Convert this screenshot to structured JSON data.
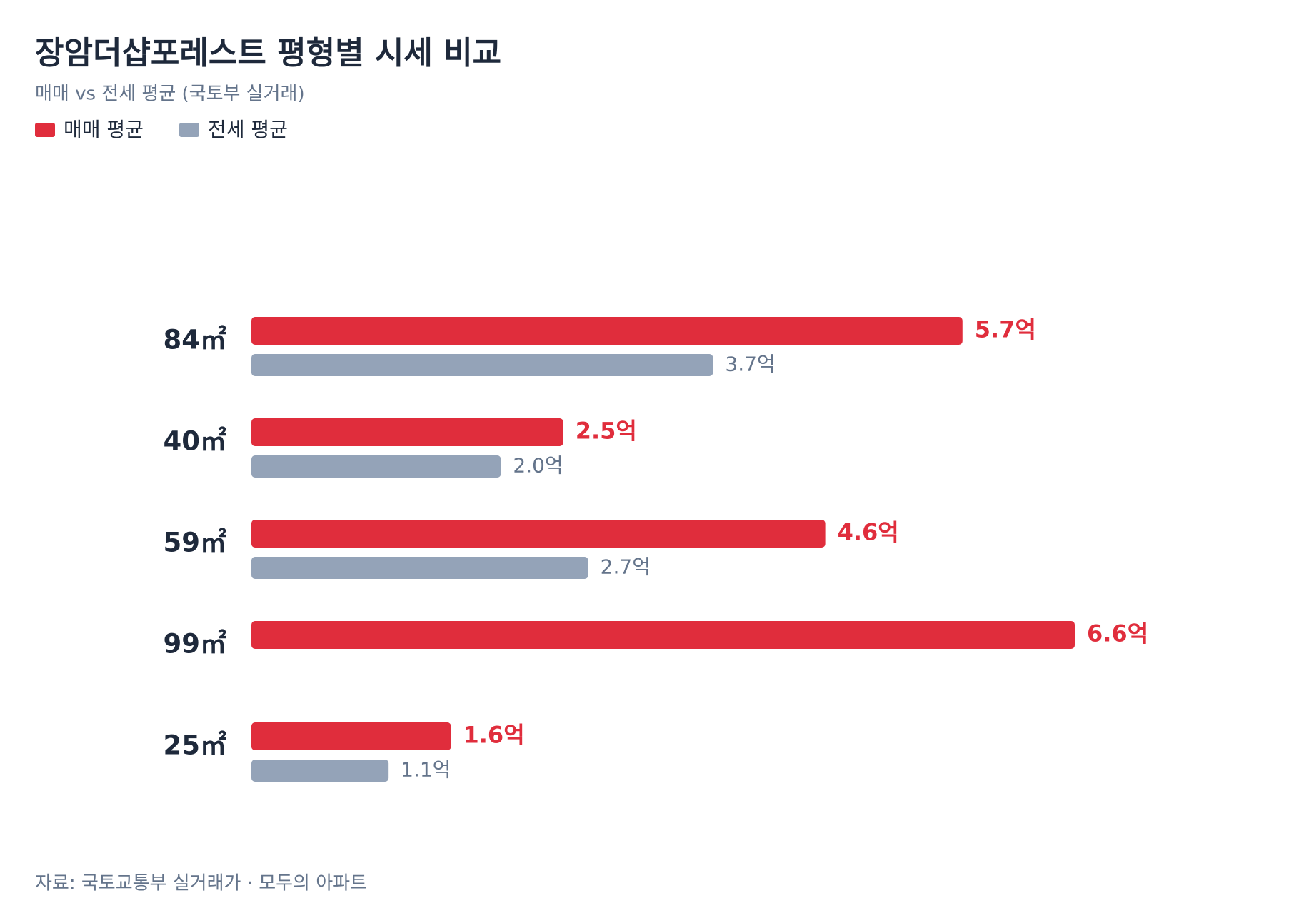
{
  "chart_data": {
    "type": "bar",
    "orientation": "horizontal",
    "title": "장암더샵포레스트 평형별 시세 비교",
    "subtitle": "매매 vs 전세 평균 (국토부 실거래)",
    "categories": [
      "84㎡",
      "40㎡",
      "59㎡",
      "99㎡",
      "25㎡"
    ],
    "series": [
      {
        "name": "매매 평균",
        "color": "#e02d3c",
        "values": [
          5.7,
          2.5,
          4.6,
          6.6,
          1.6
        ],
        "value_labels": [
          "5.7억",
          "2.5억",
          "4.6억",
          "6.6억",
          "1.6억"
        ]
      },
      {
        "name": "전세 평균",
        "color": "#94a3b8",
        "values": [
          3.7,
          2.0,
          2.7,
          null,
          1.1
        ],
        "value_labels": [
          "3.7억",
          "2.0억",
          "2.7억",
          null,
          "1.1억"
        ]
      }
    ],
    "legend": "top-left",
    "source": "자료: 국토교통부 실거래가 · 모두의 아파트"
  }
}
